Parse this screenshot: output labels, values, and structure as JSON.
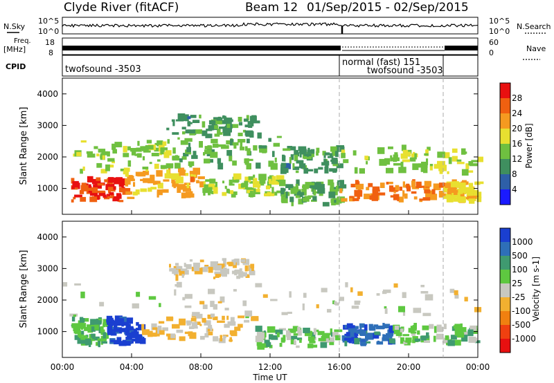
{
  "header": {
    "title": "Clyde River (fitACF)",
    "beam": "Beam 12",
    "date_range": "01/Sep/2015 - 02/Sep/2015"
  },
  "status_panel": {
    "nsky_label": "N.Sky",
    "nsearch_label": "N.Search",
    "freq_label_1": "Freq.",
    "freq_label_2": "[MHz]",
    "nave_label": "Nave",
    "cpid_label": "CPID",
    "left_ticks_top": [
      "10^5",
      "10^0"
    ],
    "right_ticks_top": [
      "10^5",
      "10^0"
    ],
    "left_ticks_freq": [
      "18",
      "8"
    ],
    "right_ticks_nave": [
      "60",
      "0"
    ],
    "cpid_segments": [
      {
        "label": "twofsound -3503",
        "start_hour": 0,
        "end_hour": 16
      },
      {
        "label": "normal (fast) 151",
        "start_hour": 16,
        "end_hour": 22
      },
      {
        "label": "twofsound -3503",
        "start_hour": 16,
        "end_hour": 22
      }
    ]
  },
  "x_axis": {
    "label": "Time UT",
    "tick_labels": [
      "00:00",
      "04:00",
      "08:00",
      "12:00",
      "16:00",
      "20:00",
      "00:00"
    ],
    "tick_hours": [
      0,
      4,
      8,
      12,
      16,
      20,
      24
    ],
    "range_hours": [
      0,
      24
    ],
    "dashed_markers_hours": [
      16,
      22
    ]
  },
  "power_panel": {
    "ylabel": "Slant Range [km]",
    "ytick_labels": [
      "1000",
      "2000",
      "3000",
      "4000"
    ],
    "colorbar_label": "Power [dB]",
    "colorbar_ticks": [
      "4",
      "8",
      "12",
      "16",
      "20",
      "24",
      "28"
    ],
    "colorbar_colors": [
      "#1a1aff",
      "#2e5fa8",
      "#3f8f5f",
      "#6fc040",
      "#e8e030",
      "#f59a20",
      "#f06010",
      "#e81010"
    ]
  },
  "velocity_panel": {
    "ylabel": "Slant Range [km]",
    "ytick_labels": [
      "1000",
      "2000",
      "3000",
      "4000"
    ],
    "colorbar_label": "Velocity [m s-1]",
    "colorbar_ticks": [
      "1000",
      "500",
      "100",
      "25",
      "-25",
      "-100",
      "-500",
      "-1000"
    ],
    "colorbar_colors": [
      "#1a3fd0",
      "#2e6fb8",
      "#3f9a70",
      "#5ec840",
      "#c8c8c0",
      "#f2b030",
      "#f08010",
      "#f04010",
      "#e81010"
    ]
  },
  "chart_data": {
    "type": "heatmap",
    "title": "Clyde River (fitACF)",
    "xlabel": "Time UT",
    "ylabel": "Slant Range [km]",
    "xlim": [
      0,
      24
    ],
    "ylim": [
      180,
      4500
    ],
    "grid": false,
    "panels": [
      {
        "name": "Power",
        "unit": "dB",
        "scale": [
          0,
          30
        ],
        "bands": [
          {
            "t0": 0.5,
            "t1": 3.5,
            "r0": 600,
            "r1": 1300,
            "v": 26
          },
          {
            "t0": 3.5,
            "t1": 8.0,
            "r0": 700,
            "r1": 1600,
            "v": 20
          },
          {
            "t0": 8.0,
            "t1": 12.5,
            "r0": 800,
            "r1": 1400,
            "v": 14
          },
          {
            "t0": 12.5,
            "t1": 16.0,
            "r0": 500,
            "r1": 1200,
            "v": 12
          },
          {
            "t0": 16.0,
            "t1": 22.0,
            "r0": 600,
            "r1": 1200,
            "v": 22
          },
          {
            "t0": 22.0,
            "t1": 24.0,
            "r0": 600,
            "r1": 1200,
            "v": 18
          },
          {
            "t0": 0.5,
            "t1": 6.5,
            "r0": 1500,
            "r1": 2500,
            "v": 14
          },
          {
            "t0": 6.5,
            "t1": 12.5,
            "r0": 1700,
            "r1": 2700,
            "v": 12
          },
          {
            "t0": 12.5,
            "t1": 16.0,
            "r0": 1500,
            "r1": 2300,
            "v": 10
          },
          {
            "t0": 16.0,
            "t1": 24.0,
            "r0": 1500,
            "r1": 2300,
            "v": 14
          },
          {
            "t0": 6.0,
            "t1": 11.0,
            "r0": 2700,
            "r1": 3300,
            "v": 10
          }
        ]
      },
      {
        "name": "Velocity",
        "unit": "m s-1",
        "scale": [
          -1000,
          1000
        ],
        "bands": [
          {
            "t0": 0.5,
            "t1": 2.5,
            "r0": 600,
            "r1": 1400,
            "v": 300
          },
          {
            "t0": 2.5,
            "t1": 4.5,
            "r0": 600,
            "r1": 1400,
            "v": 900
          },
          {
            "t0": 4.5,
            "t1": 11.0,
            "r0": 700,
            "r1": 1500,
            "v": -150
          },
          {
            "t0": 11.0,
            "t1": 16.0,
            "r0": 500,
            "r1": 1100,
            "v": 200
          },
          {
            "t0": 16.0,
            "t1": 19.0,
            "r0": 600,
            "r1": 1200,
            "v": 700
          },
          {
            "t0": 19.0,
            "t1": 24.0,
            "r0": 600,
            "r1": 1200,
            "v": 200
          },
          {
            "t0": 0.0,
            "t1": 24.0,
            "r0": 1500,
            "r1": 2500,
            "v": 0
          },
          {
            "t0": 6.0,
            "t1": 11.0,
            "r0": 2700,
            "r1": 3300,
            "v": -60
          }
        ]
      }
    ]
  }
}
